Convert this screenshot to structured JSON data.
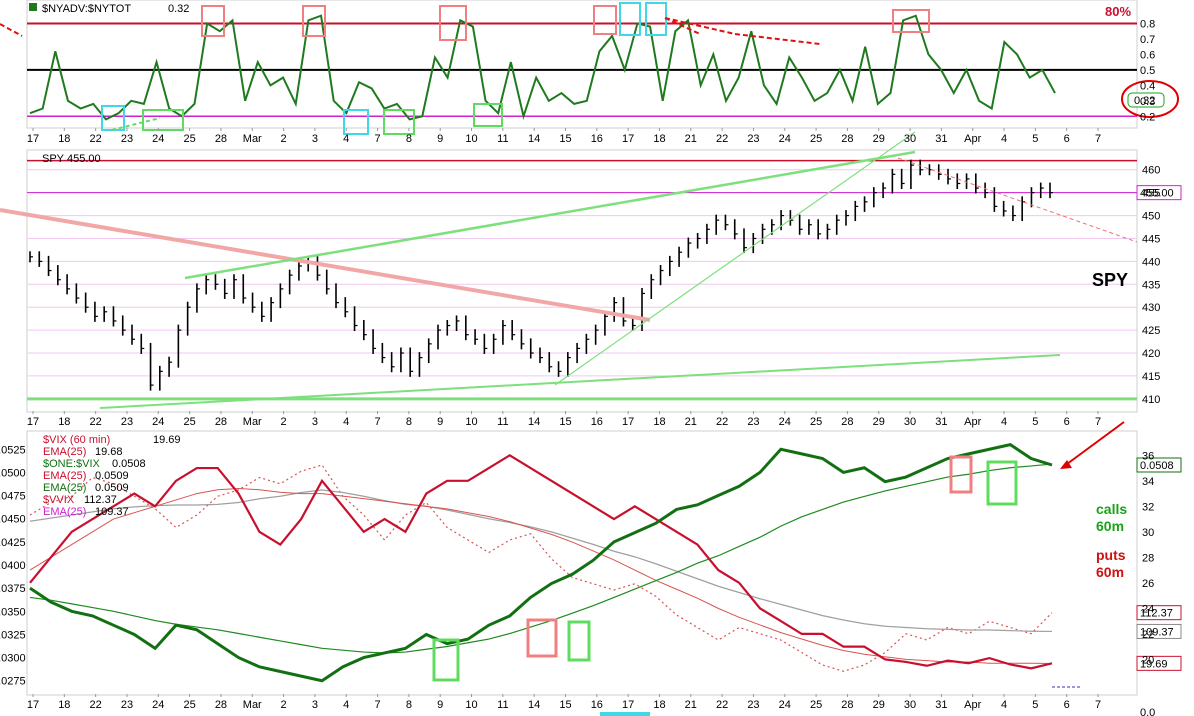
{
  "colors": {
    "breadth": "#1f7a1f",
    "price_bar": "#000000",
    "vix": "#c8102e",
    "vix_ema": "#d9534f",
    "one_vix": "#127012",
    "one_vix_ema": "#1f8a1f",
    "vvix": "#d9534f",
    "vvix_ema": "#a0a0a0",
    "level_80": "#c8102e",
    "level_20": "#d020d0",
    "trend_green": "#7de07d",
    "trend_red": "#f2a7a7",
    "box_red": "#f08080",
    "box_green": "#5fdc5f",
    "box_cyan": "#40d8e8",
    "callout": "#e00000"
  },
  "date_labels": [
    "17",
    "18",
    "22",
    "23",
    "24",
    "25",
    "28",
    "Mar",
    "2",
    "3",
    "4",
    "7",
    "8",
    "9",
    "10",
    "11",
    "14",
    "15",
    "16",
    "17",
    "18",
    "21",
    "22",
    "23",
    "24",
    "25",
    "28",
    "29",
    "30",
    "31",
    "Apr",
    "4",
    "5",
    "6",
    "7"
  ],
  "chart_data": [
    {
      "type": "line",
      "series": [
        {
          "name": "$NYADV:$NYTOT",
          "last": "0.32",
          "values": [
            0.22,
            0.25,
            0.62,
            0.3,
            0.25,
            0.28,
            0.18,
            0.22,
            0.3,
            0.28,
            0.55,
            0.25,
            0.2,
            0.28,
            0.8,
            0.75,
            0.82,
            0.3,
            0.55,
            0.4,
            0.45,
            0.28,
            0.82,
            0.85,
            0.3,
            0.22,
            0.42,
            0.38,
            0.25,
            0.28,
            0.18,
            0.2,
            0.58,
            0.45,
            0.82,
            0.78,
            0.3,
            0.22,
            0.55,
            0.2,
            0.45,
            0.3,
            0.35,
            0.28,
            0.3,
            0.62,
            0.72,
            0.5,
            0.8,
            0.78,
            0.3,
            0.75,
            0.82,
            0.4,
            0.6,
            0.3,
            0.45,
            0.75,
            0.4,
            0.28,
            0.58,
            0.45,
            0.3,
            0.35,
            0.5,
            0.3,
            0.65,
            0.28,
            0.35,
            0.82,
            0.85,
            0.6,
            0.5,
            0.35,
            0.5,
            0.3,
            0.25,
            0.68,
            0.6,
            0.45,
            0.5,
            0.35
          ]
        }
      ],
      "ylim": [
        0.15,
        0.9
      ],
      "right_ticks": [
        "0.8",
        "0.7",
        "0.6",
        "0.5",
        "0.4",
        "0.3",
        "0.2"
      ],
      "level_label": "80%",
      "last_label": "0.32"
    },
    {
      "type": "bar",
      "title": "SPY",
      "series": [
        {
          "name": "SPY",
          "last": "455.00",
          "values": [
            441,
            440,
            438,
            436,
            434,
            432,
            430,
            428,
            429,
            427,
            425,
            423,
            421,
            413,
            416,
            418,
            425,
            430,
            434,
            436,
            435,
            433,
            436,
            432,
            430,
            428,
            431,
            434,
            437,
            439,
            440,
            437,
            434,
            431,
            429,
            426,
            424,
            421,
            419,
            417,
            420,
            416,
            419,
            422,
            425,
            426,
            427,
            424,
            423,
            421,
            423,
            426,
            424,
            422,
            420,
            419,
            417,
            416,
            419,
            421,
            423,
            425,
            428,
            431,
            427,
            426,
            433,
            436,
            438,
            440,
            442,
            444,
            445,
            447,
            449,
            448,
            446,
            443,
            445,
            447,
            448,
            450,
            449,
            447,
            448,
            446,
            447,
            449,
            450,
            452,
            453,
            455,
            456,
            459,
            457,
            461,
            460,
            460,
            459,
            458,
            457,
            458,
            456,
            455,
            452,
            451,
            450,
            453,
            455,
            456,
            455
          ]
        }
      ],
      "ylim": [
        408,
        463
      ],
      "right_ticks": [
        "460",
        "455",
        "450",
        "445",
        "440",
        "435",
        "430",
        "425",
        "420",
        "415",
        "410"
      ],
      "last_label": "455.00"
    },
    {
      "type": "line",
      "series": [
        {
          "name": "$VIX (60 min)",
          "last": "19.69",
          "values": [
            26,
            28,
            30,
            31,
            32,
            33,
            32,
            34,
            35,
            35,
            33,
            30,
            29,
            31,
            34,
            32,
            30,
            31,
            30,
            33,
            34,
            34,
            35,
            36,
            35,
            34,
            33,
            32,
            31,
            32,
            31,
            30,
            29,
            27,
            26,
            24,
            23,
            22,
            22,
            21,
            21,
            20,
            19.8,
            19.5,
            19.9,
            19.7,
            20.1,
            19.6,
            19.3,
            19.69
          ]
        },
        {
          "name": "EMA(25)",
          "last": "19.68",
          "values": [
            27,
            28,
            29,
            30,
            31,
            31.5,
            32,
            32.5,
            33,
            33.3,
            33.4,
            33.3,
            33.1,
            33,
            33,
            32.8,
            32.6,
            32.4,
            32.2,
            32,
            31.8,
            31.5,
            31.2,
            30.8,
            30.3,
            29.8,
            29.2,
            28.5,
            27.8,
            27,
            26.2,
            25.5,
            24.8,
            24,
            23.3,
            22.7,
            22.1,
            21.6,
            21.1,
            20.7,
            20.4,
            20.2,
            20,
            19.9,
            19.8,
            19.8,
            19.7,
            19.7,
            19.7,
            19.68
          ]
        },
        {
          "name": "$ONE:$VIX",
          "last": "0.0508",
          "values": [
            0.0375,
            0.036,
            0.035,
            0.0345,
            0.0335,
            0.0325,
            0.031,
            0.0335,
            0.033,
            0.0315,
            0.03,
            0.029,
            0.0285,
            0.028,
            0.0275,
            0.029,
            0.03,
            0.0305,
            0.031,
            0.0325,
            0.0315,
            0.032,
            0.0335,
            0.0345,
            0.0365,
            0.038,
            0.039,
            0.0405,
            0.0425,
            0.0435,
            0.0445,
            0.046,
            0.0465,
            0.0475,
            0.0485,
            0.05,
            0.0525,
            0.052,
            0.0515,
            0.05,
            0.0505,
            0.049,
            0.0495,
            0.0505,
            0.0515,
            0.052,
            0.0525,
            0.053,
            0.0515,
            0.0508
          ]
        },
        {
          "name": "EMA(25)",
          "last": "0.0509",
          "values": [
            0.0365,
            0.0362,
            0.0358,
            0.0354,
            0.035,
            0.0345,
            0.034,
            0.0336,
            0.0333,
            0.033,
            0.0326,
            0.0322,
            0.0318,
            0.0314,
            0.031,
            0.0308,
            0.0306,
            0.0305,
            0.0306,
            0.0309,
            0.0312,
            0.0316,
            0.032,
            0.0326,
            0.0333,
            0.034,
            0.0348,
            0.0356,
            0.0365,
            0.0374,
            0.0383,
            0.0392,
            0.0402,
            0.041,
            0.042,
            0.043,
            0.0442,
            0.0452,
            0.046,
            0.0468,
            0.0474,
            0.048,
            0.0485,
            0.049,
            0.0495,
            0.0498,
            0.0502,
            0.0505,
            0.0507,
            0.0509
          ]
        },
        {
          "name": "$VVIX",
          "last": "112.37",
          "values": [
            128,
            130,
            131,
            134,
            133,
            131,
            129,
            126,
            128,
            131,
            132,
            134,
            133,
            135,
            136,
            131,
            128,
            124,
            128,
            130,
            126,
            124,
            122,
            124,
            125,
            121,
            118,
            117,
            116,
            117,
            115,
            112,
            110,
            108,
            110,
            109,
            108,
            106,
            104,
            103,
            104,
            106,
            109,
            108,
            110,
            109,
            111,
            110,
            109,
            112.37
          ]
        },
        {
          "name": "EMA(25)",
          "last": "109.37",
          "values": [
            127,
            127.5,
            128,
            128.5,
            129,
            129.3,
            129.5,
            129.6,
            129.6,
            129.7,
            130,
            130.6,
            131,
            131.6,
            132,
            131.6,
            131,
            130.3,
            129.7,
            129.4,
            128.8,
            128.1,
            127.4,
            126.8,
            126.1,
            125.3,
            124.3,
            123.3,
            122.2,
            121.3,
            120.2,
            119,
            117.8,
            116.6,
            115.6,
            114.6,
            113.7,
            112.8,
            111.9,
            111.2,
            110.6,
            110.2,
            110,
            109.8,
            109.7,
            109.6,
            109.6,
            109.5,
            109.4,
            109.37
          ]
        }
      ],
      "left_ticks": [
        "0.0525",
        "0.0500",
        "0.0475",
        "0.0450",
        "0.0425",
        "0.0400",
        "0.0375",
        "0.0350",
        "0.0325",
        "0.0300",
        "0.0275"
      ],
      "right_ticks": [
        "36",
        "34",
        "32",
        "30",
        "28",
        "26",
        "24",
        "22",
        "20"
      ],
      "ylim_vix": [
        17.6,
        37.2
      ],
      "ylim_ratio": [
        0.0265,
        0.0535
      ],
      "ylim_vvix": [
        100,
        140
      ]
    }
  ],
  "annotations": {
    "calls_line1": "calls",
    "calls_line2": "60m",
    "puts_line1": "puts",
    "puts_line2": "60m",
    "bottom_axis_tick": "0.0"
  }
}
